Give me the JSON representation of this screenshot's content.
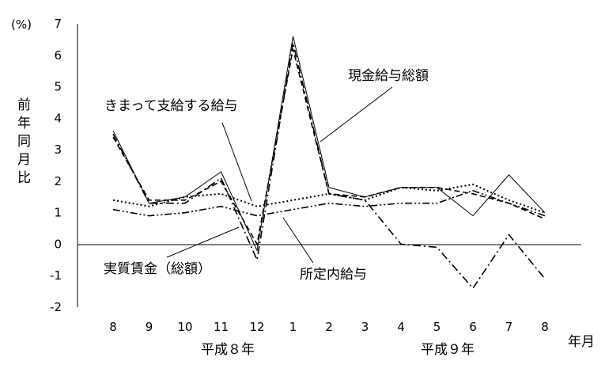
{
  "chart_data": {
    "type": "line",
    "unit_label": "(%)",
    "ylabel": "前年同月比",
    "xlabel": "年月",
    "year_groups": [
      "平成８年",
      "平成９年"
    ],
    "categories": [
      "8",
      "9",
      "10",
      "11",
      "12",
      "1",
      "2",
      "3",
      "4",
      "5",
      "6",
      "7",
      "8"
    ],
    "ylim": [
      -2,
      7
    ],
    "yticks": [
      "-2",
      "-1",
      "0",
      "1",
      "2",
      "3",
      "4",
      "5",
      "6",
      "7"
    ],
    "grid": false,
    "series": [
      {
        "name": "現金給与総額",
        "style": "solid",
        "values": [
          3.6,
          1.3,
          1.5,
          2.3,
          -0.2,
          6.6,
          1.8,
          1.5,
          1.8,
          1.8,
          0.9,
          2.2,
          1.0
        ]
      },
      {
        "name": "きまって支給する給与",
        "style": "dotted",
        "values": [
          1.4,
          1.2,
          1.5,
          1.6,
          1.2,
          1.4,
          1.6,
          1.4,
          1.8,
          1.7,
          1.9,
          1.4,
          1.0
        ]
      },
      {
        "name": "実質賃金（総額）",
        "style": "dashdot",
        "values": [
          3.5,
          1.3,
          1.3,
          2.1,
          -0.5,
          6.4,
          1.6,
          1.4,
          0.0,
          -0.1,
          -1.4,
          0.3,
          -1.1
        ]
      },
      {
        "name": "所定内給与",
        "style": "dashdotdot",
        "values": [
          1.1,
          0.9,
          1.0,
          1.2,
          0.9,
          1.1,
          1.3,
          1.2,
          1.3,
          1.3,
          1.7,
          1.3,
          0.9
        ]
      },
      {
        "name": "",
        "style": "dashed",
        "values": [
          3.4,
          1.4,
          1.4,
          2.0,
          0.0,
          6.2,
          1.6,
          1.5,
          1.8,
          1.8,
          1.6,
          1.3,
          0.8
        ]
      }
    ],
    "annotations": {
      "genkin": "現金給与総額",
      "kimatte": "きまって支給する給与",
      "jissitsu": "実質賃金（総額）",
      "shotei": "所定内給与"
    }
  }
}
